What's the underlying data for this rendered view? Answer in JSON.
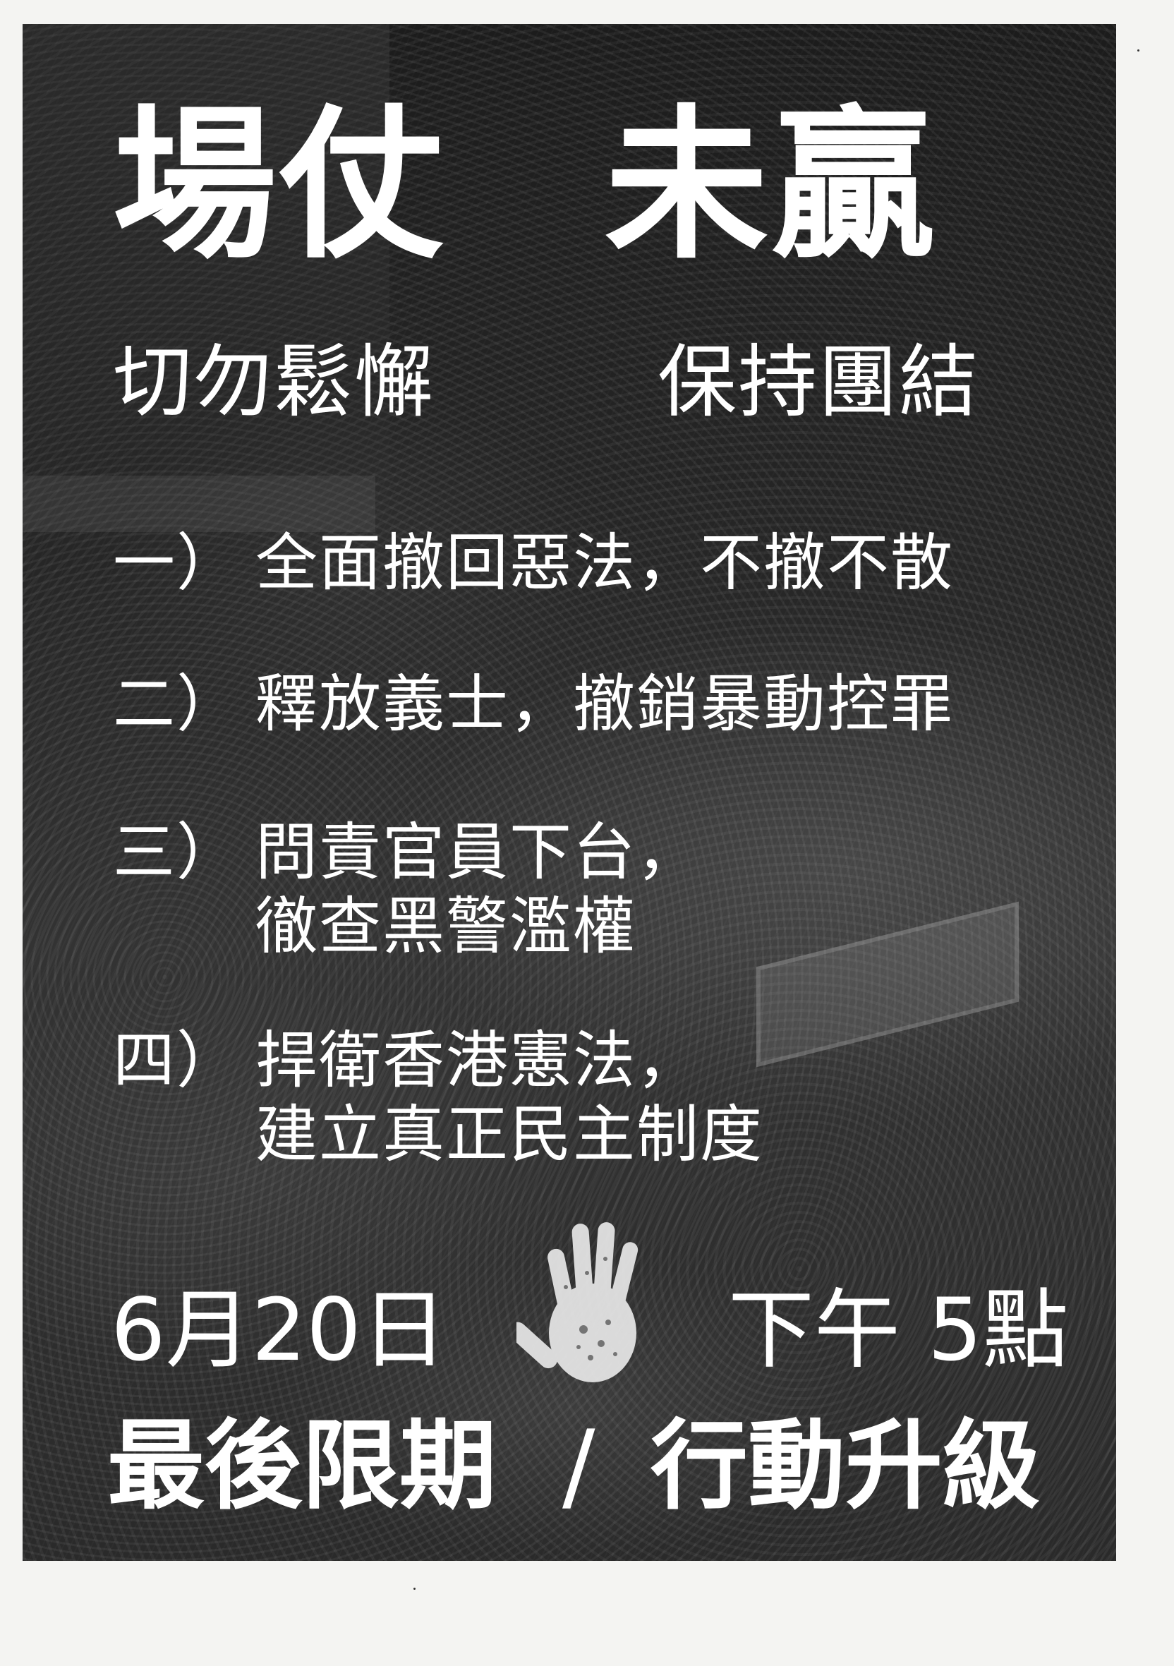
{
  "title": {
    "left": "場仗",
    "right": "未贏"
  },
  "subtitle": {
    "left": "切勿鬆懈",
    "right": "保持團結"
  },
  "demands": [
    {
      "num": "一）",
      "lines": [
        "全面撤回惡法，不撤不散"
      ]
    },
    {
      "num": "二）",
      "lines": [
        "釋放義士，撤銷暴動控罪"
      ]
    },
    {
      "num": "三）",
      "lines": [
        "問責官員下台，",
        "徹查黑警濫權"
      ]
    },
    {
      "num": "四）",
      "lines": [
        "捍衛香港憲法，",
        "建立真正民主制度"
      ]
    }
  ],
  "event": {
    "date": "6月20日",
    "time": "下午 5點"
  },
  "slogan": {
    "left": "最後限期",
    "separator": "/",
    "right": "行動升級"
  },
  "icons": {
    "center": "handprint-icon"
  },
  "colors": {
    "paper": "#f4f4f2",
    "poster_bg": "#262626",
    "text": "#ffffff"
  }
}
